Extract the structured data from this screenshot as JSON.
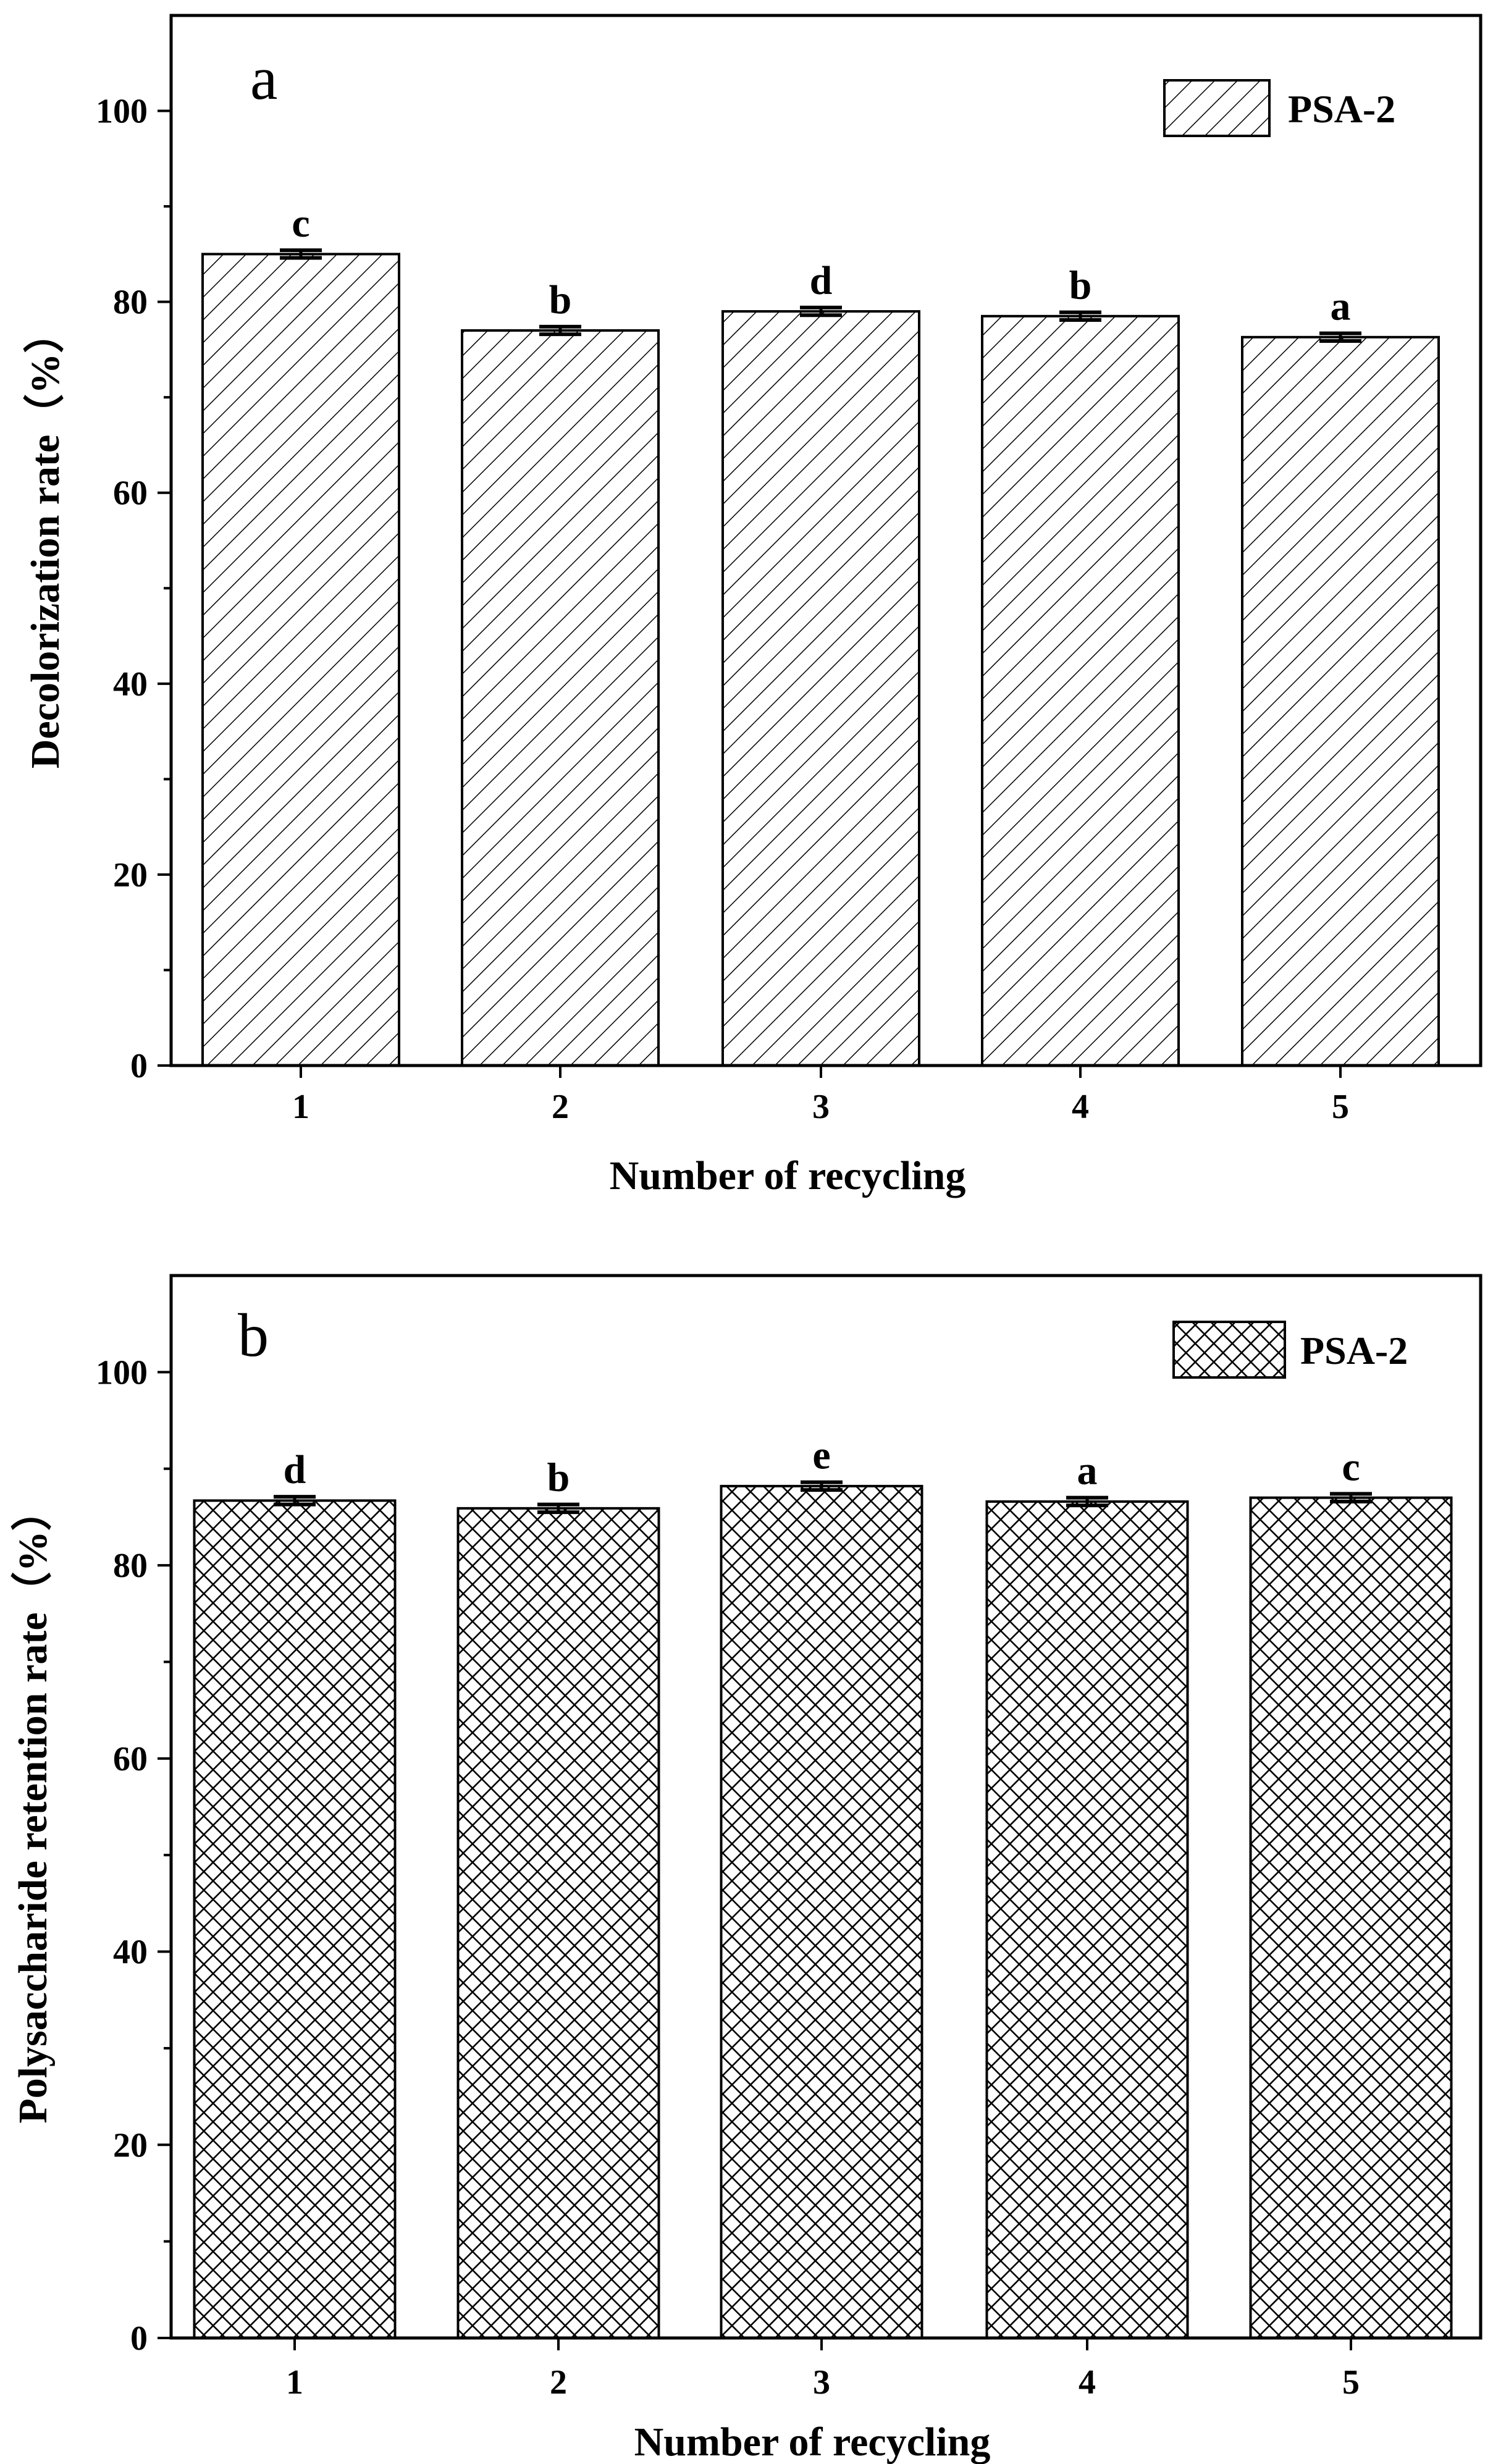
{
  "chart_data": [
    {
      "type": "bar",
      "panel_label": "a",
      "categories": [
        "1",
        "2",
        "3",
        "4",
        "5"
      ],
      "series": [
        {
          "name": "PSA-2",
          "values": [
            85.0,
            77.0,
            79.0,
            78.5,
            76.3
          ],
          "errors": [
            0.4,
            0.4,
            0.4,
            0.4,
            0.4
          ]
        }
      ],
      "significance_labels": [
        "c",
        "b",
        "d",
        "b",
        "a"
      ],
      "xlabel": "Number of recycling",
      "ylabel": "Decolorization rate（%）",
      "ylim": [
        0,
        110
      ],
      "yticks": [
        0,
        20,
        40,
        60,
        80,
        100
      ],
      "fill_pattern": "diagonal hatch",
      "grid": false,
      "legend_position": "top-right"
    },
    {
      "type": "bar",
      "panel_label": "b",
      "categories": [
        "1",
        "2",
        "3",
        "4",
        "5"
      ],
      "series": [
        {
          "name": "PSA-2",
          "values": [
            86.7,
            85.9,
            88.2,
            86.6,
            87.0
          ],
          "errors": [
            0.4,
            0.4,
            0.4,
            0.4,
            0.4
          ]
        }
      ],
      "significance_labels": [
        "d",
        "b",
        "e",
        "a",
        "c"
      ],
      "xlabel": "Number of recycling",
      "ylabel": "Polysaccharide retention rate（%）",
      "ylim": [
        0,
        110
      ],
      "yticks": [
        0,
        20,
        40,
        60,
        80,
        100
      ],
      "fill_pattern": "cross hatch",
      "grid": false,
      "legend_position": "top-right"
    }
  ],
  "colors": {
    "ink": "#000000",
    "background": "#ffffff"
  }
}
